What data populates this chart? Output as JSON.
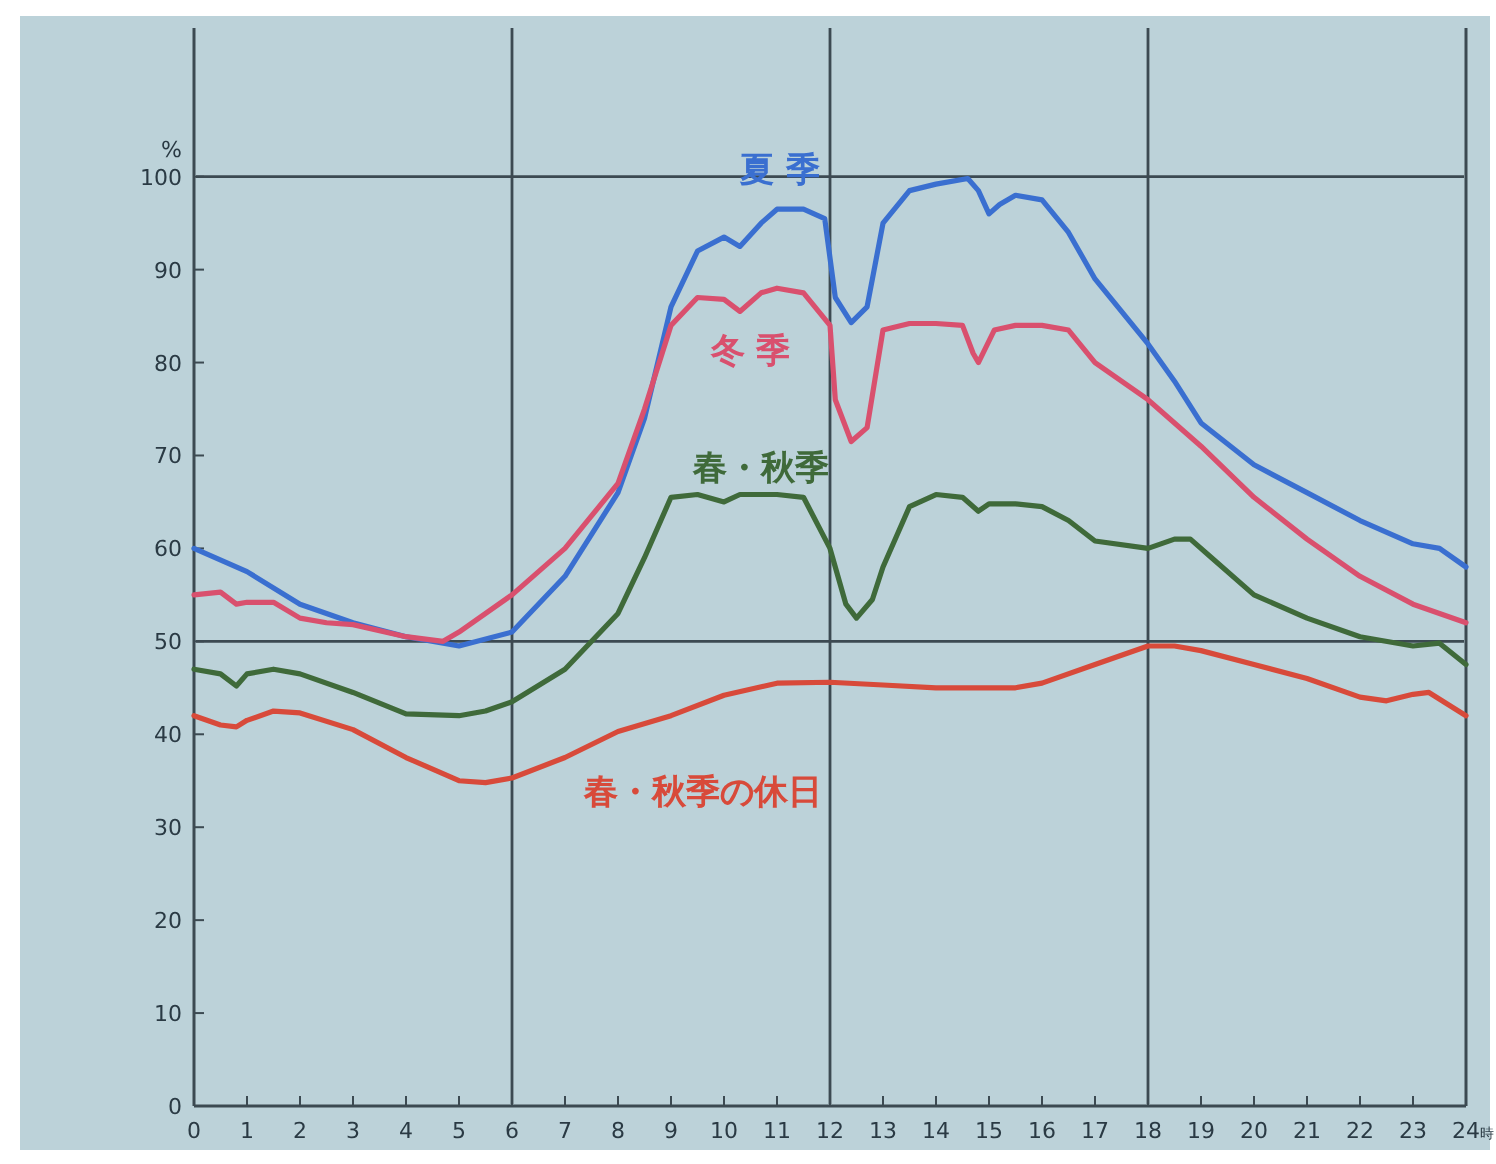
{
  "chart_data": {
    "type": "line",
    "xlabel": "時",
    "ylabel": "%",
    "xlim": [
      0,
      24
    ],
    "xticks": [
      0,
      1,
      2,
      3,
      4,
      5,
      6,
      7,
      8,
      9,
      10,
      11,
      12,
      13,
      14,
      15,
      16,
      17,
      18,
      19,
      20,
      21,
      22,
      23,
      24
    ],
    "ylim": [
      0,
      116
    ],
    "yticks": [
      0,
      10,
      20,
      30,
      40,
      50,
      60,
      70,
      80,
      90,
      100
    ],
    "grid": false,
    "legend": false,
    "marker": "none",
    "line_style": "solid",
    "ref_lines": [
      {
        "axis": "x",
        "value": 6
      },
      {
        "axis": "x",
        "value": 12
      },
      {
        "axis": "x",
        "value": 18
      },
      {
        "axis": "y",
        "value": 50
      },
      {
        "axis": "y",
        "value": 100
      }
    ],
    "series": [
      {
        "name": "夏 季",
        "color": "#3a6fd0",
        "x": [
          0,
          1,
          2,
          3,
          4,
          5,
          6,
          7,
          8,
          8.5,
          9,
          9.5,
          10,
          10.3,
          10.7,
          11,
          11.5,
          11.9,
          12.1,
          12.4,
          12.7,
          13,
          13.5,
          14,
          14.6,
          14.8,
          15,
          15.2,
          15.5,
          16,
          16.5,
          17,
          18,
          18.5,
          19,
          20,
          21,
          22,
          23,
          23.5,
          24
        ],
        "values": [
          60,
          57.5,
          54,
          52,
          50.5,
          49.5,
          51,
          57,
          66,
          74,
          86,
          92,
          93.5,
          92.5,
          95,
          96.5,
          96.5,
          95.5,
          87,
          84.3,
          86,
          95,
          98.5,
          99.2,
          99.8,
          98.5,
          96,
          97,
          98,
          97.5,
          94,
          89,
          82,
          78,
          73.5,
          69,
          66,
          63,
          60.5,
          60,
          58
        ]
      },
      {
        "name": "冬 季",
        "color": "#d9506e",
        "x": [
          0,
          0.5,
          0.8,
          1,
          1.5,
          2,
          2.5,
          3,
          4,
          4.7,
          5,
          6,
          7,
          8,
          8.5,
          9,
          9.5,
          10,
          10.3,
          10.7,
          11,
          11.5,
          12,
          12.1,
          12.4,
          12.7,
          13,
          13.5,
          14,
          14.5,
          14.7,
          14.8,
          15.1,
          15.5,
          16,
          16.5,
          17,
          18,
          19,
          20,
          21,
          22,
          23,
          24
        ],
        "values": [
          55,
          55.3,
          54,
          54.2,
          54.2,
          52.5,
          52,
          51.8,
          50.5,
          50,
          51,
          55,
          60,
          67,
          75,
          84,
          87,
          86.8,
          85.5,
          87.5,
          88,
          87.5,
          84,
          76,
          71.5,
          73,
          83.5,
          84.2,
          84.2,
          84,
          81,
          80,
          83.5,
          84,
          84,
          83.5,
          80,
          76,
          71,
          65.5,
          61,
          57,
          54,
          52
        ]
      },
      {
        "name": "春・秋季",
        "color": "#3f6a3a",
        "x": [
          0,
          0.5,
          0.8,
          1,
          1.5,
          2,
          3,
          4,
          5,
          5.5,
          6,
          7,
          8,
          8.5,
          9,
          9.5,
          10,
          10.3,
          11,
          11.5,
          12,
          12.3,
          12.5,
          12.8,
          13,
          13.5,
          14,
          14.5,
          14.8,
          15,
          15.5,
          16,
          16.5,
          17,
          18,
          18.5,
          18.8,
          19.2,
          20,
          21,
          22,
          23,
          23.5,
          24
        ],
        "values": [
          47,
          46.5,
          45.2,
          46.5,
          47,
          46.5,
          44.5,
          42.2,
          42,
          42.5,
          43.5,
          47,
          53,
          59,
          65.5,
          65.8,
          65,
          65.8,
          65.8,
          65.5,
          60,
          54,
          52.5,
          54.5,
          58,
          64.5,
          65.8,
          65.5,
          64,
          64.8,
          64.8,
          64.5,
          63,
          60.8,
          60,
          61,
          61,
          59,
          55,
          52.5,
          50.5,
          49.5,
          49.8,
          47.5
        ]
      },
      {
        "name": "春・秋季の休日",
        "color": "#d84a3a",
        "x": [
          0,
          0.5,
          0.8,
          1,
          1.5,
          2,
          3,
          4,
          5,
          5.5,
          6,
          7,
          8,
          9,
          10,
          11,
          12,
          13,
          14,
          15,
          15.5,
          16,
          17,
          18,
          18.5,
          19,
          20,
          21,
          22,
          22.5,
          23,
          23.3,
          24
        ],
        "values": [
          42,
          41,
          40.8,
          41.5,
          42.5,
          42.3,
          40.5,
          37.5,
          35,
          34.8,
          35.3,
          37.5,
          40.3,
          42,
          44.2,
          45.5,
          45.6,
          45.3,
          45,
          45,
          45,
          45.5,
          47.5,
          49.5,
          49.5,
          49,
          47.5,
          46,
          44,
          43.6,
          44.3,
          44.5,
          42
        ]
      }
    ]
  }
}
